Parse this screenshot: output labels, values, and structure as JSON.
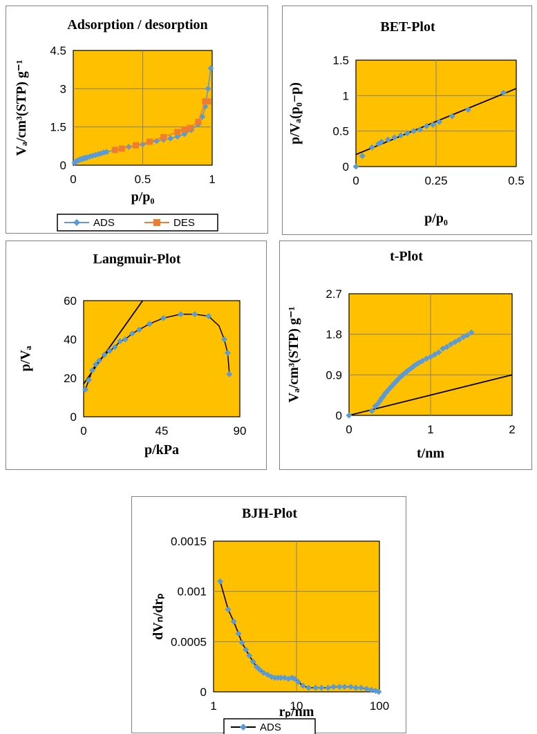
{
  "colors": {
    "plot_bg": "#FFC000",
    "ads": "#5B9BD5",
    "des": "#ED7D31",
    "fit_line": "#000000",
    "grid": "#7f7f7f"
  },
  "chart_data": [
    {
      "id": "ads",
      "type": "line",
      "title": "Adsorption / desorption",
      "xlabel": "p/p₀",
      "ylabel": "Vₐ/cm³(STP) g⁻¹",
      "xlim": [
        0,
        1
      ],
      "ylim": [
        0,
        4.5
      ],
      "x_ticks": [
        0,
        0.5,
        1
      ],
      "x_tick_labels": [
        "0",
        "0.5",
        "1"
      ],
      "y_ticks": [
        0,
        1.5,
        3,
        4.5
      ],
      "y_tick_labels": [
        "0",
        "1.5",
        "3",
        "4.5"
      ],
      "grid": true,
      "legend": "bottom",
      "series": [
        {
          "name": "ADS",
          "marker": "diamond",
          "x": [
            0.01,
            0.02,
            0.03,
            0.04,
            0.05,
            0.06,
            0.07,
            0.08,
            0.09,
            0.1,
            0.12,
            0.14,
            0.16,
            0.18,
            0.2,
            0.22,
            0.24,
            0.3,
            0.4,
            0.5,
            0.6,
            0.65,
            0.7,
            0.75,
            0.8,
            0.85,
            0.9,
            0.93,
            0.95,
            0.97,
            0.99
          ],
          "y": [
            0.1,
            0.15,
            0.18,
            0.2,
            0.22,
            0.24,
            0.26,
            0.27,
            0.29,
            0.3,
            0.34,
            0.37,
            0.4,
            0.43,
            0.46,
            0.5,
            0.52,
            0.6,
            0.72,
            0.82,
            0.95,
            1.0,
            1.05,
            1.12,
            1.22,
            1.38,
            1.6,
            1.9,
            2.3,
            3.0,
            3.8
          ]
        },
        {
          "name": "DES",
          "marker": "square",
          "x": [
            0.3,
            0.35,
            0.45,
            0.55,
            0.65,
            0.75,
            0.8,
            0.84,
            0.9,
            0.95,
            0.97
          ],
          "y": [
            0.6,
            0.65,
            0.78,
            0.92,
            1.1,
            1.3,
            1.4,
            1.46,
            1.7,
            2.5,
            2.5
          ]
        }
      ]
    },
    {
      "id": "bet",
      "type": "scatter",
      "title": "BET-Plot",
      "xlabel": "p/p₀",
      "ylabel": "p/Vₐ(p₀−p)",
      "xlim": [
        0,
        0.5
      ],
      "ylim": [
        0,
        1.5
      ],
      "x_ticks": [
        0,
        0.25,
        0.5
      ],
      "x_tick_labels": [
        "0",
        "0.25",
        "0.5"
      ],
      "y_ticks": [
        0,
        0.5,
        1,
        1.5
      ],
      "y_tick_labels": [
        "0",
        "0.5",
        "1",
        "1.5"
      ],
      "grid": true,
      "series": [
        {
          "name": "",
          "marker": "diamond",
          "x": [
            0.0,
            0.02,
            0.05,
            0.07,
            0.08,
            0.1,
            0.12,
            0.14,
            0.16,
            0.18,
            0.2,
            0.22,
            0.24,
            0.26,
            0.3,
            0.35,
            0.46
          ],
          "y": [
            0.0,
            0.15,
            0.27,
            0.32,
            0.35,
            0.38,
            0.41,
            0.44,
            0.47,
            0.5,
            0.52,
            0.57,
            0.59,
            0.63,
            0.71,
            0.8,
            1.04
          ]
        }
      ],
      "fit_line": {
        "x": [
          0,
          0.5
        ],
        "y": [
          0.17,
          1.1
        ]
      }
    },
    {
      "id": "lang",
      "type": "scatter",
      "title": "Langmuir-Plot",
      "xlabel": "p/kPa",
      "ylabel": "p/Vₐ",
      "xlim": [
        0,
        90
      ],
      "ylim": [
        0,
        60
      ],
      "x_ticks": [
        0,
        45,
        90
      ],
      "x_tick_labels": [
        "0",
        "45",
        "90"
      ],
      "y_ticks": [
        0,
        20,
        40,
        60
      ],
      "y_tick_labels": [
        "0",
        "20",
        "40",
        "60"
      ],
      "grid": false,
      "series": [
        {
          "name": "",
          "marker": "diamond",
          "x": [
            1,
            3,
            5,
            7,
            9,
            12,
            15,
            18,
            21,
            24,
            28,
            32,
            38,
            46,
            56,
            64,
            72,
            81,
            83,
            84
          ],
          "y": [
            14,
            19,
            24,
            27,
            29,
            32,
            34,
            36,
            39,
            40,
            43,
            45,
            48,
            51,
            53,
            53,
            52,
            40,
            33,
            22
          ]
        }
      ],
      "curve": {
        "x": [
          1,
          3,
          5,
          7,
          9,
          12,
          15,
          18,
          21,
          24,
          28,
          32,
          38,
          46,
          56,
          64,
          72,
          78,
          81,
          83,
          84
        ],
        "y": [
          14,
          19,
          24,
          27,
          29,
          32,
          34,
          36,
          39,
          40,
          43,
          45,
          48,
          51,
          53,
          53,
          52,
          47,
          40,
          33,
          22
        ]
      },
      "fit_line": {
        "x": [
          0,
          34
        ],
        "y": [
          17,
          60
        ]
      }
    },
    {
      "id": "t",
      "type": "scatter",
      "title": "t-Plot",
      "xlabel": "t/nm",
      "ylabel": "Vₐ/cm³(STP) g⁻¹",
      "xlim": [
        0,
        2
      ],
      "ylim": [
        0,
        2.7
      ],
      "x_ticks": [
        0,
        1,
        2
      ],
      "x_tick_labels": [
        "0",
        "1",
        "2"
      ],
      "y_ticks": [
        0,
        0.9,
        1.8,
        2.7
      ],
      "y_tick_labels": [
        "0",
        "0.9",
        "1.8",
        "2.7"
      ],
      "grid": true,
      "series": [
        {
          "name": "",
          "marker": "diamond",
          "x": [
            0.0,
            0.28,
            0.32,
            0.35,
            0.38,
            0.4,
            0.42,
            0.44,
            0.46,
            0.48,
            0.5,
            0.52,
            0.54,
            0.56,
            0.58,
            0.6,
            0.62,
            0.64,
            0.66,
            0.68,
            0.7,
            0.72,
            0.75,
            0.78,
            0.8,
            0.83,
            0.86,
            0.9,
            0.95,
            1.0,
            1.05,
            1.1,
            1.15,
            1.2,
            1.25,
            1.3,
            1.35,
            1.4,
            1.45,
            1.5
          ],
          "y": [
            0.0,
            0.1,
            0.2,
            0.25,
            0.32,
            0.38,
            0.42,
            0.48,
            0.52,
            0.56,
            0.6,
            0.64,
            0.68,
            0.72,
            0.76,
            0.8,
            0.83,
            0.87,
            0.9,
            0.93,
            0.96,
            0.99,
            1.03,
            1.07,
            1.1,
            1.14,
            1.17,
            1.21,
            1.26,
            1.3,
            1.35,
            1.4,
            1.48,
            1.52,
            1.58,
            1.63,
            1.68,
            1.74,
            1.78,
            1.84
          ]
        }
      ],
      "fit_line": {
        "x": [
          0,
          2
        ],
        "y": [
          0,
          0.9
        ]
      }
    },
    {
      "id": "bjh",
      "type": "line",
      "title": "BJH-Plot",
      "xlabel": "rₚ/nm",
      "ylabel": "dVₙ/drₚ",
      "xscale": "log",
      "xlim": [
        1,
        100
      ],
      "ylim": [
        0,
        0.0015
      ],
      "x_ticks": [
        1,
        10,
        100
      ],
      "x_tick_labels": [
        "1",
        "10",
        "100"
      ],
      "y_ticks": [
        0,
        0.0005,
        0.001,
        0.0015
      ],
      "y_tick_labels": [
        "0",
        "0.0005",
        "0.001",
        "0.0015"
      ],
      "grid": true,
      "legend": "bottom",
      "series": [
        {
          "name": "ADS",
          "marker": "diamond",
          "x": [
            1.2,
            1.5,
            1.75,
            2.0,
            2.2,
            2.45,
            2.7,
            3.0,
            3.3,
            3.6,
            4.0,
            4.5,
            5.0,
            5.5,
            6.0,
            6.5,
            7.2,
            8.0,
            8.8,
            9.5,
            10.5,
            12,
            14,
            17,
            20,
            24,
            28,
            33,
            38,
            45,
            52,
            60,
            70,
            80,
            90,
            98
          ],
          "y": [
            0.0011,
            0.00082,
            0.0007,
            0.00058,
            0.00049,
            0.00042,
            0.00036,
            0.0003,
            0.00025,
            0.00022,
            0.00019,
            0.00017,
            0.00015,
            0.00014,
            0.00014,
            0.00014,
            0.00014,
            0.00013,
            0.00014,
            0.00013,
            0.0001,
            6e-05,
            4e-05,
            4e-05,
            4e-05,
            4e-05,
            5e-05,
            5e-05,
            5e-05,
            5e-05,
            4e-05,
            4e-05,
            3e-05,
            2e-05,
            1e-05,
            0.0
          ]
        }
      ]
    }
  ]
}
